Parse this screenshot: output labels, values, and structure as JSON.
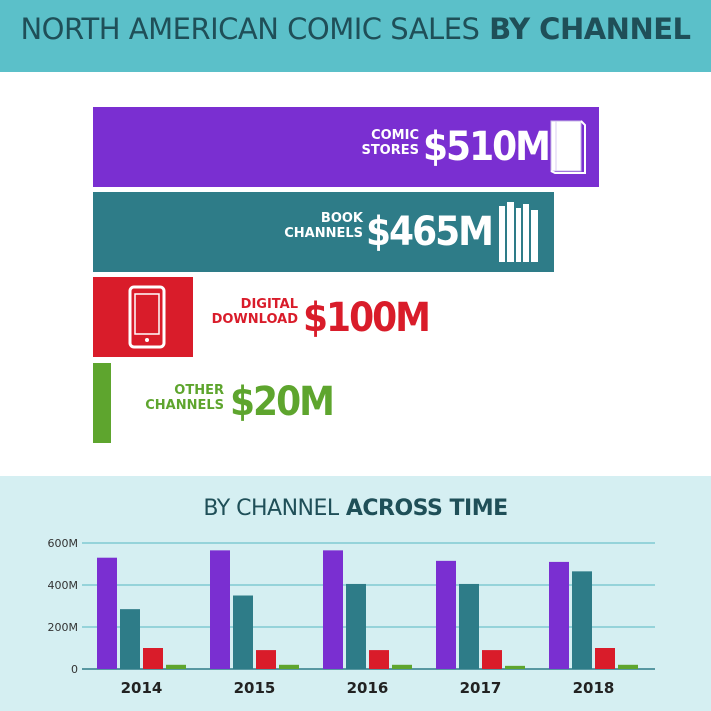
{
  "header": {
    "title_regular": "NORTH AMERICAN COMIC SALES",
    "title_bold": "BY CHANNEL"
  },
  "channels": [
    {
      "label_line1": "COMIC",
      "label_line2": "STORES",
      "value_label": "$510M",
      "color": "#7a2fd1",
      "icon": "book-icon"
    },
    {
      "label_line1": "BOOK",
      "label_line2": "CHANNELS",
      "value_label": "$465M",
      "color": "#2e7c88",
      "icon": "books-stack-icon"
    },
    {
      "label_line1": "DIGITAL",
      "label_line2": "DOWNLOAD",
      "value_label": "$100M",
      "color": "#d91c2a",
      "icon": "tablet-icon"
    },
    {
      "label_line1": "OTHER",
      "label_line2": "CHANNELS",
      "value_label": "$20M",
      "color": "#5ea52e",
      "icon": ""
    }
  ],
  "bottom": {
    "title_regular": "BY CHANNEL",
    "title_bold": "ACROSS TIME"
  },
  "chart_data": [
    {
      "type": "bar",
      "orientation": "horizontal",
      "title": "NORTH AMERICAN COMIC SALES BY CHANNEL",
      "categories": [
        "COMIC STORES",
        "BOOK CHANNELS",
        "DIGITAL DOWNLOAD",
        "OTHER CHANNELS"
      ],
      "values": [
        510,
        465,
        100,
        20
      ],
      "value_labels": [
        "$510M",
        "$465M",
        "$100M",
        "$20M"
      ]
    },
    {
      "type": "bar",
      "title": "BY CHANNEL ACROSS TIME",
      "categories": [
        "2014",
        "2015",
        "2016",
        "2017",
        "2018"
      ],
      "series": [
        {
          "values": [
            530,
            565,
            565,
            515,
            510
          ],
          "color": "#7a2fd1"
        },
        {
          "values": [
            285,
            350,
            405,
            405,
            465
          ],
          "color": "#2e7c88"
        },
        {
          "values": [
            100,
            90,
            90,
            90,
            100
          ],
          "color": "#d91c2a"
        },
        {
          "values": [
            20,
            20,
            20,
            15,
            20
          ],
          "color": "#5ea52e"
        }
      ],
      "ylim": [
        0,
        600
      ],
      "yticks": [
        0,
        200,
        400,
        600
      ],
      "ytick_labels": [
        "0",
        "200M",
        "400M",
        "600M"
      ],
      "grid": true
    }
  ]
}
